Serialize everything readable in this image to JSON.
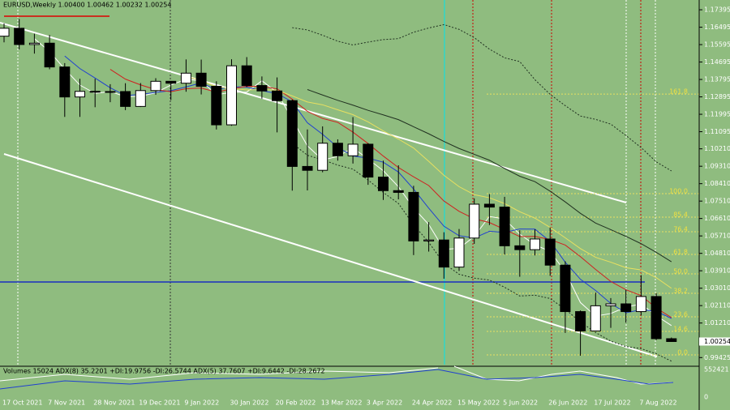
{
  "chart_data": {
    "type": "candlestick",
    "title": "EURUSD,Weekly  1.00400 1.00462 1.00232 1.00254",
    "open": [
      1.1603,
      1.1644,
      1.156,
      1.1567,
      1.1444,
      1.1289,
      1.1318,
      1.1315,
      1.1317,
      1.124,
      1.1322,
      1.137,
      1.136,
      1.1412,
      1.1344,
      1.1145,
      1.145,
      1.1348,
      1.132,
      1.127,
      1.093,
      1.091,
      1.105,
      1.0985,
      1.1045,
      1.0875,
      1.0805,
      1.0796,
      1.0545,
      1.055,
      1.041,
      1.056,
      1.0735,
      1.072,
      1.052,
      1.05,
      1.0555,
      1.042,
      1.018,
      1.008,
      1.021,
      1.022,
      1.018,
      1.0258,
      1.004
    ],
    "high": [
      1.1669,
      1.1692,
      1.1616,
      1.1609,
      1.1464,
      1.1383,
      1.1383,
      1.1355,
      1.136,
      1.1361,
      1.1386,
      1.137,
      1.1483,
      1.1482,
      1.137,
      1.1484,
      1.1495,
      1.1395,
      1.139,
      1.1275,
      1.1121,
      1.1137,
      1.107,
      1.1185,
      1.105,
      1.096,
      1.0936,
      1.083,
      1.0642,
      1.059,
      1.0607,
      1.0765,
      1.0787,
      1.0773,
      1.06,
      1.0605,
      1.0615,
      1.044,
      1.0186,
      1.0278,
      1.025,
      1.0293,
      1.0368,
      1.0275,
      1.00462
    ],
    "low": [
      1.1571,
      1.1535,
      1.1513,
      1.1432,
      1.1186,
      1.1186,
      1.1236,
      1.1262,
      1.1221,
      1.1237,
      1.13,
      1.1273,
      1.1316,
      1.1302,
      1.1121,
      1.114,
      1.134,
      1.128,
      1.1106,
      1.0805,
      1.0806,
      1.09,
      1.096,
      1.0945,
      1.0835,
      1.0757,
      1.076,
      1.0472,
      1.049,
      1.035,
      1.039,
      1.053,
      1.0627,
      1.0475,
      1.036,
      1.047,
      1.0365,
      1.007,
      0.9952,
      1.008,
      1.0096,
      1.0123,
      1.016,
      1.0033,
      1.00232
    ],
    "close": [
      1.1644,
      1.156,
      1.1567,
      1.1444,
      1.1289,
      1.1318,
      1.1315,
      1.1317,
      1.124,
      1.1322,
      1.137,
      1.136,
      1.1412,
      1.1344,
      1.1145,
      1.145,
      1.1348,
      1.132,
      1.127,
      1.093,
      1.091,
      1.105,
      1.0985,
      1.1045,
      1.0875,
      1.0805,
      1.0796,
      1.0545,
      1.055,
      1.041,
      1.056,
      1.0735,
      1.072,
      1.052,
      1.05,
      1.0555,
      1.042,
      1.018,
      1.008,
      1.021,
      1.022,
      1.018,
      1.0258,
      1.004,
      1.00254
    ],
    "categories": [
      "17 Oct 2021",
      null,
      null,
      "7 Nov 2021",
      null,
      null,
      "28 Nov 2021",
      null,
      null,
      "19 Dec 2021",
      null,
      null,
      "9 Jan 2022",
      null,
      null,
      "30 Jan 2022",
      null,
      null,
      "20 Feb 2022",
      null,
      null,
      "13 Mar 2022",
      null,
      null,
      "3 Apr 2022",
      null,
      null,
      "24 Apr 2022",
      null,
      null,
      "15 May 2022",
      null,
      null,
      "5 Jun 2022",
      null,
      null,
      "26 Jun 2022",
      null,
      null,
      "17 Jul 2022",
      null,
      null,
      "7 Aug 2022",
      null,
      null
    ],
    "ylim": [
      0.9906,
      1.179
    ],
    "yticks": [
      1.17395,
      1.16495,
      1.15595,
      1.14695,
      1.13795,
      1.12895,
      1.11995,
      1.11095,
      {
        "value": 1.1021,
        "label": "1.10210"
      },
      {
        "value": 1.0931,
        "label": "1.09310"
      },
      {
        "value": 1.0841,
        "label": "1.08410"
      },
      {
        "value": 1.0751,
        "label": "1.07510"
      },
      {
        "value": 1.0661,
        "label": "1.06610"
      },
      {
        "value": 1.0571,
        "label": "1.05710"
      },
      {
        "value": 1.0481,
        "label": "1.04810"
      },
      {
        "value": 1.0391,
        "label": "1.03910"
      },
      {
        "value": 1.0301,
        "label": "1.03010"
      },
      {
        "value": 1.0211,
        "label": "1.02110"
      },
      {
        "value": 1.0121,
        "label": "1.01210"
      },
      0.99425
    ],
    "current_price": 1.00254,
    "fib_levels": [
      {
        "value": 1.1304,
        "label": "161.8"
      },
      {
        "value": 1.07893,
        "label": "100.0"
      },
      {
        "value": 1.06679,
        "label": "85.4"
      },
      {
        "value": 1.05925,
        "label": "76.4"
      },
      {
        "value": 1.04753,
        "label": "61.8"
      },
      {
        "value": 1.03748,
        "label": "50.0"
      },
      {
        "value": 1.02744,
        "label": "38.2"
      },
      {
        "value": 1.0153,
        "label": "23.6"
      },
      {
        "value": 1.00776,
        "label": "14.6"
      },
      {
        "value": 0.99562,
        "label": "0.0"
      }
    ],
    "indicator_title": "Volumes 15024  ADX(8) 35.2201 +DI:19.9756 -DI:26.5744  ADX(5) 37.7607 +DI:9.6442 -DI:28.2672",
    "indicator_ticks": [
      552421,
      0
    ],
    "color_up": "#ffffff",
    "color_down": "#000000"
  }
}
